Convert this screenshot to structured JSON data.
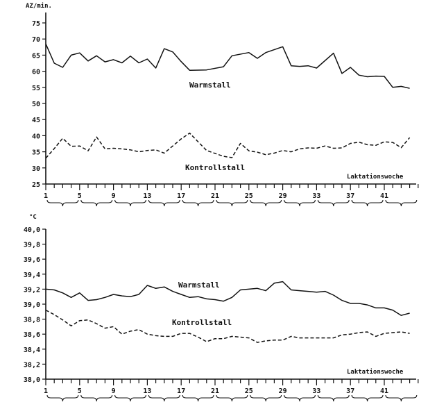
{
  "chart_data": [
    {
      "type": "line",
      "ylabel": "AZ/min.",
      "xlabel": "Laktationswoche",
      "ylim": [
        25,
        75
      ],
      "yticks": [
        25,
        30,
        35,
        40,
        45,
        50,
        55,
        60,
        65,
        70,
        75
      ],
      "ytick_labels": [
        "25",
        "30",
        "35",
        "40",
        "45",
        "50",
        "55",
        "60",
        "65",
        "70",
        "75"
      ],
      "xlim": [
        1,
        45
      ],
      "xticks_labeled": [
        1,
        5,
        9,
        13,
        17,
        21,
        25,
        29,
        33,
        37,
        41
      ],
      "xtick_labels": [
        "1",
        "5",
        "9",
        "13",
        "17",
        "21",
        "25",
        "29",
        "33",
        "37",
        "41"
      ],
      "grid": false,
      "series": [
        {
          "name": "Warmstall",
          "line_style": "solid",
          "x": [
            1,
            2,
            3,
            4,
            5,
            6,
            7,
            8,
            9,
            10,
            11,
            12,
            13,
            14,
            15,
            16,
            17,
            18,
            20,
            22,
            23,
            25,
            26,
            27,
            29,
            30,
            31,
            32,
            33,
            35,
            36,
            37,
            38,
            39,
            40,
            41,
            42,
            43,
            44
          ],
          "values": [
            68.5,
            62.5,
            61.2,
            65.0,
            65.7,
            63.2,
            64.8,
            62.9,
            63.6,
            62.6,
            64.7,
            62.6,
            63.8,
            61.0,
            67.0,
            66.0,
            63.0,
            60.3,
            60.4,
            61.4,
            64.8,
            65.8,
            64.0,
            65.8,
            67.6,
            61.7,
            61.5,
            61.7,
            61.0,
            65.6,
            59.3,
            61.2,
            58.8,
            58.3,
            58.5,
            58.4,
            55.0,
            55.3,
            54.7
          ]
        },
        {
          "name": "Kontrollstall",
          "line_style": "dashed",
          "x": [
            1,
            2,
            3,
            4,
            5,
            6,
            7,
            8,
            9,
            10,
            11,
            12,
            13,
            14,
            15,
            17,
            18,
            20,
            22,
            23,
            24,
            25,
            26,
            27,
            28,
            29,
            30,
            31,
            32,
            33,
            34,
            35,
            36,
            37,
            38,
            39,
            40,
            41,
            42,
            43,
            44
          ],
          "values": [
            33.0,
            36.0,
            39.2,
            36.7,
            36.8,
            35.3,
            39.6,
            35.9,
            36.1,
            35.9,
            35.6,
            35.0,
            35.4,
            35.6,
            34.6,
            39.0,
            40.8,
            35.4,
            33.6,
            33.2,
            37.6,
            35.3,
            34.9,
            34.1,
            34.6,
            35.4,
            35.0,
            35.9,
            36.2,
            36.1,
            36.8,
            36.1,
            36.2,
            37.6,
            38.0,
            37.2,
            37.0,
            38.1,
            37.9,
            36.3,
            39.4
          ]
        }
      ]
    },
    {
      "type": "line",
      "ylabel": "°C",
      "xlabel": "Laktationswoche",
      "ylim": [
        38.0,
        40.0
      ],
      "yticks": [
        38.0,
        38.2,
        38.4,
        38.6,
        38.8,
        39.0,
        39.2,
        39.4,
        39.6,
        39.8,
        40.0
      ],
      "ytick_labels": [
        "38,0",
        "38,2",
        "38,4",
        "38,6",
        "38,8",
        "39,0",
        "39,2",
        "39,4",
        "39,6",
        "39,8",
        "40,0"
      ],
      "xlim": [
        1,
        45
      ],
      "xticks_labeled": [
        1,
        5,
        9,
        13,
        17,
        21,
        25,
        29,
        33,
        37,
        41
      ],
      "xtick_labels": [
        "1",
        "5",
        "9",
        "13",
        "17",
        "21",
        "25",
        "29",
        "33",
        "37",
        "41"
      ],
      "grid": false,
      "series": [
        {
          "name": "Warmstall",
          "line_style": "solid",
          "x": [
            1,
            2,
            3,
            4,
            5,
            6,
            7,
            8,
            9,
            10,
            11,
            12,
            13,
            14,
            15,
            16,
            17,
            18,
            19,
            20,
            21,
            22,
            23,
            24,
            25,
            26,
            27,
            28,
            29,
            30,
            31,
            32,
            33,
            34,
            35,
            36,
            37,
            38,
            39,
            40,
            41,
            42,
            43,
            44
          ],
          "values": [
            39.2,
            39.19,
            39.15,
            39.09,
            39.15,
            39.05,
            39.06,
            39.09,
            39.13,
            39.11,
            39.1,
            39.13,
            39.25,
            39.21,
            39.23,
            39.17,
            39.13,
            39.09,
            39.1,
            39.07,
            39.06,
            39.04,
            39.09,
            39.19,
            39.2,
            39.21,
            39.18,
            39.28,
            39.3,
            39.19,
            39.18,
            39.17,
            39.16,
            39.17,
            39.12,
            39.05,
            39.01,
            39.01,
            38.99,
            38.95,
            38.95,
            38.92,
            38.85,
            38.88
          ]
        },
        {
          "name": "Kontrollstall",
          "line_style": "dashed",
          "x": [
            1,
            2,
            3,
            4,
            5,
            6,
            7,
            8,
            9,
            10,
            11,
            12,
            13,
            14,
            15,
            16,
            17,
            18,
            19,
            20,
            21,
            22,
            23,
            24,
            25,
            26,
            27,
            28,
            29,
            30,
            31,
            32,
            33,
            34,
            35,
            36,
            37,
            38,
            39,
            40,
            41,
            42,
            43,
            44
          ],
          "values": [
            38.92,
            38.86,
            38.79,
            38.71,
            38.78,
            38.79,
            38.74,
            38.68,
            38.7,
            38.6,
            38.64,
            38.66,
            38.6,
            38.58,
            38.57,
            38.57,
            38.61,
            38.61,
            38.56,
            38.5,
            38.54,
            38.54,
            38.57,
            38.56,
            38.55,
            38.49,
            38.51,
            38.52,
            38.52,
            38.57,
            38.55,
            38.55,
            38.55,
            38.55,
            38.55,
            38.59,
            38.6,
            38.62,
            38.63,
            38.57,
            38.61,
            38.62,
            38.63,
            38.61
          ]
        }
      ]
    }
  ]
}
